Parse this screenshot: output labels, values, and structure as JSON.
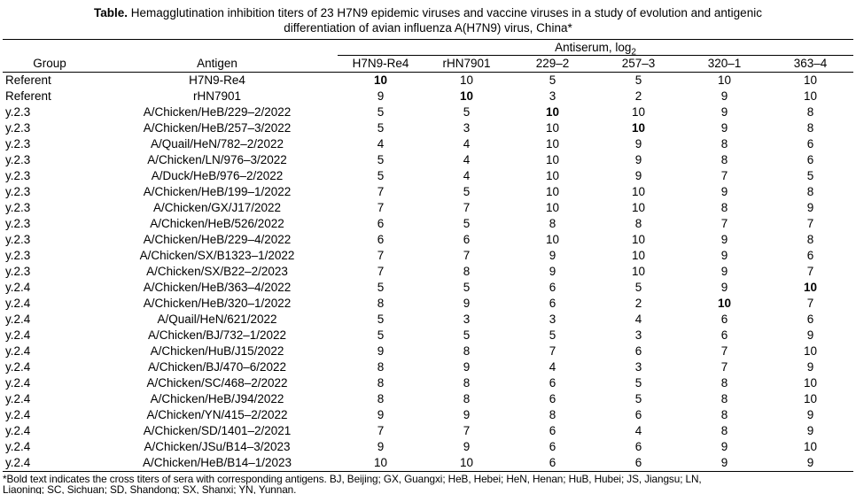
{
  "title": {
    "label": "Table.",
    "line1": " Hemagglutination inhibition titers of 23 H7N9 epidemic viruses and vaccine viruses in a study of evolution and antigenic",
    "line2": "differentiation of avian influenza A(H7N9) virus, China*"
  },
  "table": {
    "antiserum_label": "Antiserum, log",
    "antiserum_sub": "2",
    "columns": [
      "Group",
      "Antigen",
      "H7N9-Re4",
      "rHN7901",
      "229–2",
      "257–3",
      "320–1",
      "363–4"
    ],
    "rows": [
      {
        "group": "Referent",
        "antigen": "H7N9-Re4",
        "values": [
          10,
          10,
          5,
          5,
          10,
          10
        ],
        "bold_index": 0
      },
      {
        "group": "Referent",
        "antigen": "rHN7901",
        "values": [
          9,
          10,
          3,
          2,
          9,
          10
        ],
        "bold_index": 1
      },
      {
        "group": "y.2.3",
        "antigen": "A/Chicken/HeB/229–2/2022",
        "values": [
          5,
          5,
          10,
          10,
          9,
          8
        ],
        "bold_index": 2
      },
      {
        "group": "y.2.3",
        "antigen": "A/Chicken/HeB/257–3/2022",
        "values": [
          5,
          3,
          10,
          10,
          9,
          8
        ],
        "bold_index": 3
      },
      {
        "group": "y.2.3",
        "antigen": "A/Quail/HeN/782–2/2022",
        "values": [
          4,
          4,
          10,
          9,
          8,
          6
        ],
        "bold_index": null
      },
      {
        "group": "y.2.3",
        "antigen": "A/Chicken/LN/976–3/2022",
        "values": [
          5,
          4,
          10,
          9,
          8,
          6
        ],
        "bold_index": null
      },
      {
        "group": "y.2.3",
        "antigen": "A/Duck/HeB/976–2/2022",
        "values": [
          5,
          4,
          10,
          9,
          7,
          5
        ],
        "bold_index": null
      },
      {
        "group": "y.2.3",
        "antigen": "A/Chicken/HeB/199–1/2022",
        "values": [
          7,
          5,
          10,
          10,
          9,
          8
        ],
        "bold_index": null
      },
      {
        "group": "y.2.3",
        "antigen": "A/Chicken/GX/J17/2022",
        "values": [
          7,
          7,
          10,
          10,
          8,
          9
        ],
        "bold_index": null
      },
      {
        "group": "y.2.3",
        "antigen": "A/Chicken/HeB/526/2022",
        "values": [
          6,
          5,
          8,
          8,
          7,
          7
        ],
        "bold_index": null
      },
      {
        "group": "y.2.3",
        "antigen": "A/Chicken/HeB/229–4/2022",
        "values": [
          6,
          6,
          10,
          10,
          9,
          8
        ],
        "bold_index": null
      },
      {
        "group": "y.2.3",
        "antigen": "A/Chicken/SX/B1323–1/2022",
        "values": [
          7,
          7,
          9,
          10,
          9,
          6
        ],
        "bold_index": null
      },
      {
        "group": "y.2.3",
        "antigen": "A/Chicken/SX/B22–2/2023",
        "values": [
          7,
          8,
          9,
          10,
          9,
          7
        ],
        "bold_index": null
      },
      {
        "group": "y.2.4",
        "antigen": "A/Chicken/HeB/363–4/2022",
        "values": [
          5,
          5,
          6,
          5,
          9,
          10
        ],
        "bold_index": 5
      },
      {
        "group": "y.2.4",
        "antigen": "A/Chicken/HeB/320–1/2022",
        "values": [
          8,
          9,
          6,
          2,
          10,
          7
        ],
        "bold_index": 4
      },
      {
        "group": "y.2.4",
        "antigen": "A/Quail/HeN/621/2022",
        "values": [
          5,
          3,
          3,
          4,
          6,
          6
        ],
        "bold_index": null
      },
      {
        "group": "y.2.4",
        "antigen": "A/Chicken/BJ/732–1/2022",
        "values": [
          5,
          5,
          5,
          3,
          6,
          9
        ],
        "bold_index": null
      },
      {
        "group": "y.2.4",
        "antigen": "A/Chicken/HuB/J15/2022",
        "values": [
          9,
          8,
          7,
          6,
          7,
          10
        ],
        "bold_index": null
      },
      {
        "group": "y.2.4",
        "antigen": "A/Chicken/BJ/470–6/2022",
        "values": [
          8,
          9,
          4,
          3,
          7,
          9
        ],
        "bold_index": null
      },
      {
        "group": "y.2.4",
        "antigen": "A/Chicken/SC/468–2/2022",
        "values": [
          8,
          8,
          6,
          5,
          8,
          10
        ],
        "bold_index": null
      },
      {
        "group": "y.2.4",
        "antigen": "A/Chicken/HeB/J94/2022",
        "values": [
          8,
          8,
          6,
          5,
          8,
          10
        ],
        "bold_index": null
      },
      {
        "group": "y.2.4",
        "antigen": "A/Chicken/YN/415–2/2022",
        "values": [
          9,
          9,
          8,
          6,
          8,
          9
        ],
        "bold_index": null
      },
      {
        "group": "y.2.4",
        "antigen": "A/Chicken/SD/1401–2/2021",
        "values": [
          7,
          7,
          6,
          4,
          8,
          9
        ],
        "bold_index": null
      },
      {
        "group": "y.2.4",
        "antigen": "A/Chicken/JSu/B14–3/2023",
        "values": [
          9,
          9,
          6,
          6,
          9,
          10
        ],
        "bold_index": null
      },
      {
        "group": "y.2.4",
        "antigen": "A/Chicken/HeB/B14–1/2023",
        "values": [
          10,
          10,
          6,
          6,
          9,
          9
        ],
        "bold_index": null
      }
    ]
  },
  "footnote": {
    "line1": "*Bold text indicates the cross titers of sera with corresponding antigens. BJ, Beijing; GX, Guangxi; HeB, Hebei; HeN, Henan; HuB, Hubei; JS, Jiangsu; LN,",
    "line2": "Liaoning; SC, Sichuan; SD, Shandong; SX, Shanxi; YN, Yunnan."
  }
}
